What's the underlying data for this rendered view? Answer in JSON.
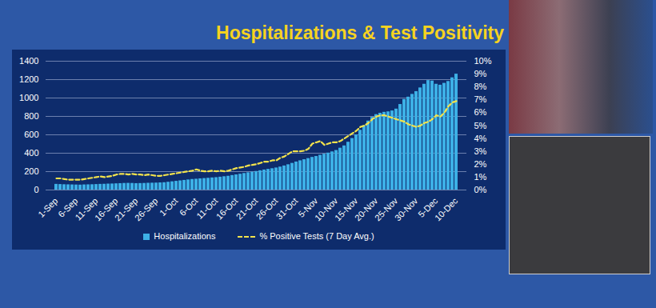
{
  "chart_data": {
    "type": "bar",
    "title": "Hospitalizations & Test Positivity",
    "categories": [
      "1-Sep",
      null,
      null,
      null,
      null,
      "6-Sep",
      null,
      null,
      null,
      null,
      "11-Sep",
      null,
      null,
      null,
      null,
      "16-Sep",
      null,
      null,
      null,
      null,
      "21-Sep",
      null,
      null,
      null,
      null,
      "26-Sep",
      null,
      null,
      null,
      null,
      "1-Oct",
      null,
      null,
      null,
      null,
      "6-Oct",
      null,
      null,
      null,
      null,
      "11-Oct",
      null,
      null,
      null,
      null,
      "16-Oct",
      null,
      null,
      null,
      null,
      "21-Oct",
      null,
      null,
      null,
      null,
      "26-Oct",
      null,
      null,
      null,
      null,
      "31-Oct",
      null,
      null,
      null,
      null,
      "5-Nov",
      null,
      null,
      null,
      null,
      "10-Nov",
      null,
      null,
      null,
      null,
      "15-Nov",
      null,
      null,
      null,
      null,
      "20-Nov",
      null,
      null,
      null,
      null,
      "25-Nov",
      null,
      null,
      null,
      null,
      "30-Nov",
      null,
      null,
      null,
      null,
      "5-Dec",
      null,
      null,
      null,
      null,
      "10-Dec"
    ],
    "series": [
      {
        "name": "Hospitalizations",
        "type": "bar",
        "color": "#3db0e6",
        "values": [
          62,
          60,
          58,
          57,
          56,
          55,
          54,
          56,
          57,
          58,
          60,
          62,
          63,
          65,
          66,
          68,
          70,
          72,
          73,
          72,
          70,
          71,
          72,
          74,
          75,
          76,
          78,
          80,
          85,
          90,
          95,
          100,
          105,
          110,
          115,
          118,
          122,
          125,
          128,
          132,
          135,
          140,
          145,
          150,
          158,
          165,
          172,
          180,
          188,
          195,
          202,
          210,
          218,
          225,
          232,
          240,
          250,
          262,
          275,
          290,
          305,
          318,
          330,
          342,
          355,
          365,
          378,
          390,
          402,
          415,
          430,
          455,
          480,
          520,
          560,
          600,
          650,
          700,
          750,
          790,
          820,
          835,
          845,
          850,
          860,
          880,
          930,
          985,
          1010,
          1040,
          1070,
          1110,
          1150,
          1190,
          1185,
          1150,
          1140,
          1160,
          1180,
          1220,
          1260
        ]
      },
      {
        "name": "% Positive Tests (7 Day Avg.)",
        "type": "line",
        "axis": "y2",
        "color": "#f2e24c",
        "line_style": "dashed",
        "values": [
          0.9,
          0.9,
          0.85,
          0.8,
          0.8,
          0.8,
          0.8,
          0.85,
          0.9,
          0.95,
          1.0,
          1.05,
          1.0,
          1.05,
          1.1,
          1.2,
          1.25,
          1.25,
          1.2,
          1.25,
          1.2,
          1.2,
          1.15,
          1.2,
          1.15,
          1.1,
          1.1,
          1.15,
          1.2,
          1.25,
          1.3,
          1.35,
          1.4,
          1.45,
          1.5,
          1.6,
          1.5,
          1.45,
          1.45,
          1.5,
          1.45,
          1.5,
          1.45,
          1.5,
          1.6,
          1.7,
          1.75,
          1.8,
          1.9,
          1.95,
          2.0,
          2.1,
          2.2,
          2.2,
          2.3,
          2.3,
          2.5,
          2.6,
          2.8,
          3.0,
          3.0,
          3.0,
          3.05,
          3.2,
          3.6,
          3.7,
          3.8,
          3.5,
          3.6,
          3.7,
          3.7,
          3.8,
          4.0,
          4.2,
          4.4,
          4.6,
          4.9,
          5.0,
          5.2,
          5.5,
          5.7,
          5.8,
          5.8,
          5.7,
          5.6,
          5.5,
          5.4,
          5.3,
          5.1,
          5.0,
          4.9,
          5.0,
          5.2,
          5.3,
          5.5,
          5.8,
          5.7,
          6.0,
          6.5,
          6.8,
          6.9
        ]
      }
    ],
    "ylim": [
      0,
      1400
    ],
    "yticks": [
      0,
      200,
      400,
      600,
      800,
      1000,
      1200,
      1400
    ],
    "y2lim": [
      0,
      10
    ],
    "y2ticks": [
      {
        "value": 0,
        "label": "0%"
      },
      {
        "value": 1,
        "label": "1%"
      },
      {
        "value": 2,
        "label": "2%"
      },
      {
        "value": 3,
        "label": "3%"
      },
      {
        "value": 4,
        "label": "4%"
      },
      {
        "value": 5,
        "label": "5%"
      },
      {
        "value": 6,
        "label": "6%"
      },
      {
        "value": 7,
        "label": "7%"
      },
      {
        "value": 8,
        "label": "8%"
      },
      {
        "value": 9,
        "label": "9%"
      },
      {
        "value": 10,
        "label": "10%"
      }
    ],
    "grid": true,
    "legend": "bottom"
  }
}
